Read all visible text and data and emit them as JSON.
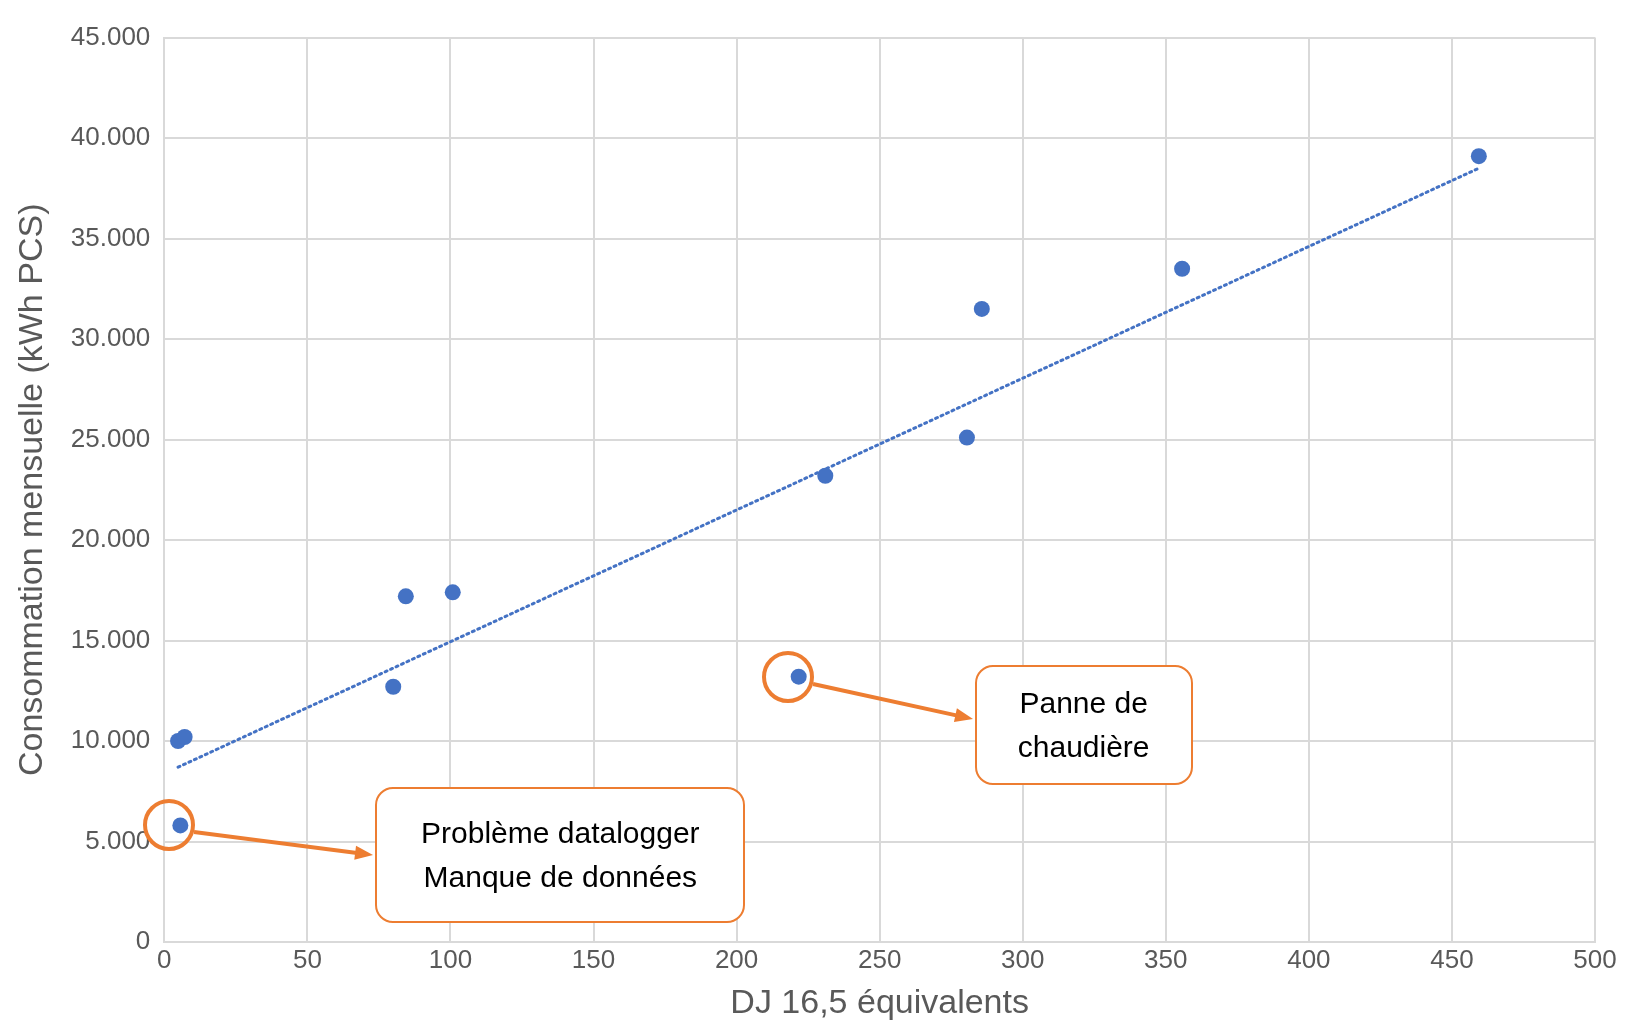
{
  "chart_data": {
    "type": "scatter",
    "xlabel": "DJ 16,5 équivalents",
    "ylabel": "Consommation mensuelle (kWh PCS)",
    "xlim": [
      0,
      500
    ],
    "xticks": [
      0,
      50,
      100,
      150,
      200,
      250,
      300,
      350,
      400,
      450,
      500
    ],
    "ylim": [
      0,
      45000
    ],
    "yticks": [
      {
        "value": 0,
        "label": "0"
      },
      {
        "value": 5000,
        "label": "5.000"
      },
      {
        "value": 10000,
        "label": "10.000"
      },
      {
        "value": 15000,
        "label": "15.000"
      },
      {
        "value": 20000,
        "label": "20.000"
      },
      {
        "value": 25000,
        "label": "25.000"
      },
      {
        "value": 30000,
        "label": "30.000"
      },
      {
        "value": 35000,
        "label": "35.000"
      },
      {
        "value": 40000,
        "label": "40.000"
      },
      {
        "value": 45000,
        "label": "45.000"
      }
    ],
    "grid": true,
    "legend": false,
    "marker": "circle",
    "series": [
      {
        "color": "#4472c4",
        "x": [
          4.8,
          7.1,
          5.6,
          80,
          84.4,
          100.8,
          221.7,
          231,
          280.5,
          285.7,
          355.7,
          459.4
        ],
        "values": [
          10000,
          10200,
          5800,
          12700,
          17200,
          17400,
          13200,
          23200,
          25100,
          31500,
          33500,
          39100
        ]
      },
      {
        "type": "line",
        "color": "#4472c4",
        "line_style": "dotted",
        "marker": "none",
        "x": [
          4.8,
          459.4
        ],
        "values": [
          8700,
          38500
        ]
      }
    ],
    "annotations": [
      "Problème datalogger\nManque de données",
      "Panne de\nchaudière"
    ]
  }
}
